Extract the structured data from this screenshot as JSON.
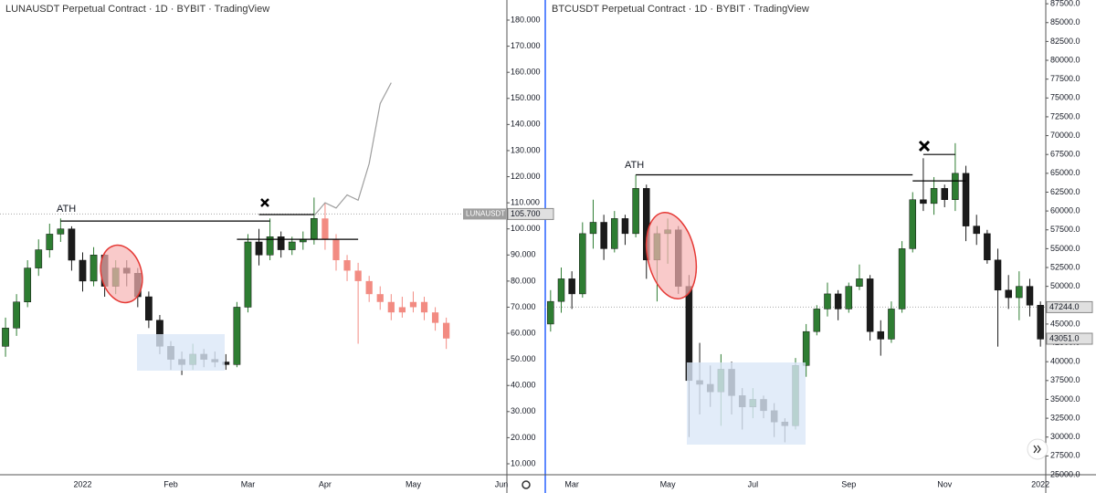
{
  "chart_data": [
    {
      "type": "candlestick",
      "title": "LUNAUSDT Perpetual Contract · 1D · BYBIT · TradingView",
      "categories": [
        null,
        null,
        null,
        null,
        null,
        null,
        null,
        "2022",
        null,
        null,
        null,
        null,
        null,
        null,
        null,
        "Feb",
        null,
        null,
        null,
        null,
        null,
        null,
        "Mar",
        null,
        null,
        null,
        null,
        null,
        null,
        "Apr",
        null,
        null,
        null,
        null,
        null,
        null,
        null,
        "May",
        null,
        null,
        null,
        null,
        null,
        null,
        null,
        "Jun"
      ],
      "ylim": [
        5.8,
        187.7
      ],
      "yticks": [
        {
          "value": 10,
          "label": "10.000"
        },
        {
          "value": 20,
          "label": "20.000"
        },
        {
          "value": 30,
          "label": "30.000"
        },
        {
          "value": 40,
          "label": "40.000"
        },
        {
          "value": 50,
          "label": "50.000"
        },
        {
          "value": 60,
          "label": "60.000"
        },
        {
          "value": 70,
          "label": "70.000"
        },
        {
          "value": 80,
          "label": "80.000"
        },
        {
          "value": 90,
          "label": "90.000"
        },
        {
          "value": 100,
          "label": "100.000"
        },
        {
          "value": 110,
          "label": "110.000"
        },
        {
          "value": 120,
          "label": "120.000"
        },
        {
          "value": 130,
          "label": "130.000"
        },
        {
          "value": 140,
          "label": "140.000"
        },
        {
          "value": 150,
          "label": "150.000"
        },
        {
          "value": 160,
          "label": "160.000"
        },
        {
          "value": 170,
          "label": "170.000"
        },
        {
          "value": 180,
          "label": "180.000"
        }
      ],
      "series": [
        {
          "color_up": "#2e7d32",
          "color_down": "#1b1b1b",
          "open": [
            55,
            62,
            72,
            85,
            92,
            98,
            100,
            88,
            80,
            90,
            78,
            85,
            83,
            74,
            65,
            55,
            50,
            48,
            52,
            50,
            49,
            48,
            70,
            95,
            90,
            97,
            92,
            95,
            96,
            null,
            null,
            null,
            null,
            null,
            null,
            null,
            null,
            null,
            null,
            null,
            null,
            null,
            null,
            null,
            null,
            null
          ],
          "high": [
            66,
            75,
            88,
            96,
            102,
            104,
            101,
            91,
            93,
            91,
            88,
            88,
            85,
            76,
            67,
            57,
            53,
            56,
            54,
            53,
            52,
            72,
            98,
            100,
            104,
            99,
            97,
            99,
            112,
            null,
            null,
            null,
            null,
            null,
            null,
            null,
            null,
            null,
            null,
            null,
            null,
            null,
            null,
            null,
            null,
            null
          ],
          "low": [
            51,
            59,
            70,
            82,
            89,
            95,
            84,
            76,
            78,
            74,
            75,
            78,
            70,
            62,
            52,
            46,
            44,
            46,
            47,
            47,
            46,
            47,
            68,
            86,
            88,
            89,
            90,
            92,
            94,
            null,
            null,
            null,
            null,
            null,
            null,
            null,
            null,
            null,
            null,
            null,
            null,
            null,
            null,
            null,
            null,
            null
          ],
          "close": [
            62,
            72,
            85,
            92,
            98,
            100,
            88,
            80,
            90,
            78,
            85,
            83,
            74,
            65,
            55,
            50,
            48,
            52,
            50,
            49,
            48,
            70,
            95,
            90,
            97,
            92,
            95,
            96,
            104,
            null,
            null,
            null,
            null,
            null,
            null,
            null,
            null,
            null,
            null,
            null,
            null,
            null,
            null,
            null,
            null,
            null
          ]
        },
        {
          "color": "#f28b82",
          "open": [
            null,
            null,
            null,
            null,
            null,
            null,
            null,
            null,
            null,
            null,
            null,
            null,
            null,
            null,
            null,
            null,
            null,
            null,
            null,
            null,
            null,
            null,
            null,
            null,
            null,
            null,
            null,
            null,
            null,
            104,
            96,
            88,
            84,
            80,
            75,
            72,
            68,
            70,
            72,
            68,
            64,
            null,
            null,
            null,
            null,
            null
          ],
          "high": [
            null,
            null,
            null,
            null,
            null,
            null,
            null,
            null,
            null,
            null,
            null,
            null,
            null,
            null,
            null,
            null,
            null,
            null,
            null,
            null,
            null,
            null,
            null,
            null,
            null,
            null,
            null,
            null,
            null,
            110,
            98,
            90,
            87,
            82,
            78,
            75,
            74,
            76,
            74,
            70,
            66,
            null,
            null,
            null,
            null,
            null
          ],
          "low": [
            null,
            null,
            null,
            null,
            null,
            null,
            null,
            null,
            null,
            null,
            null,
            null,
            null,
            null,
            null,
            null,
            null,
            null,
            null,
            null,
            null,
            null,
            null,
            null,
            null,
            null,
            null,
            null,
            null,
            92,
            84,
            80,
            56,
            72,
            69,
            65,
            66,
            68,
            65,
            61,
            54,
            null,
            null,
            null,
            null,
            null
          ],
          "close": [
            null,
            null,
            null,
            null,
            null,
            null,
            null,
            null,
            null,
            null,
            null,
            null,
            null,
            null,
            null,
            null,
            null,
            null,
            null,
            null,
            null,
            null,
            null,
            null,
            null,
            null,
            null,
            null,
            null,
            96,
            88,
            84,
            80,
            75,
            72,
            68,
            70,
            72,
            68,
            64,
            58,
            null,
            null,
            null,
            null,
            null
          ]
        }
      ],
      "projection": {
        "color": "#9e9e9e",
        "values": [
          null,
          null,
          null,
          null,
          null,
          null,
          null,
          null,
          null,
          null,
          null,
          null,
          null,
          null,
          null,
          null,
          null,
          null,
          null,
          null,
          null,
          null,
          null,
          null,
          null,
          null,
          null,
          null,
          105,
          110,
          108,
          113,
          111,
          125,
          148,
          156,
          null,
          null,
          null,
          null,
          null,
          null,
          null,
          null,
          null,
          null
        ]
      },
      "levels": [
        {
          "value": 103,
          "from": 5,
          "to": 24
        },
        {
          "value": 105.5,
          "from": 23,
          "to": 28
        },
        {
          "value": 96,
          "from": 21,
          "to": 32
        }
      ],
      "price_labels": [
        {
          "name": "LUNAUSDT",
          "value": 105.7,
          "label": "105.700"
        }
      ],
      "annotations": [
        {
          "text": "ATH"
        }
      ]
    },
    {
      "type": "candlestick",
      "title": "BTCUSDT Perpetual Contract · 1D · BYBIT · TradingView",
      "categories": [
        null,
        null,
        "Mar",
        null,
        null,
        null,
        null,
        null,
        null,
        null,
        null,
        "May",
        null,
        null,
        null,
        null,
        null,
        null,
        null,
        "Jul",
        null,
        null,
        null,
        null,
        null,
        null,
        null,
        null,
        "Sep",
        null,
        null,
        null,
        null,
        null,
        null,
        null,
        null,
        "Nov",
        null,
        null,
        null,
        null,
        null,
        null,
        null,
        null,
        "2022"
      ],
      "ylim": [
        25000,
        88000
      ],
      "yticks": [
        {
          "value": 25000,
          "label": "25000.0"
        },
        {
          "value": 27500,
          "label": "27500.0"
        },
        {
          "value": 30000,
          "label": "30000.0"
        },
        {
          "value": 32500,
          "label": "32500.0"
        },
        {
          "value": 35000,
          "label": "35000.0"
        },
        {
          "value": 37500,
          "label": "37500.0"
        },
        {
          "value": 40000,
          "label": "40000.0"
        },
        {
          "value": 42500,
          "label": "42500.0"
        },
        {
          "value": 45000,
          "label": "45000.0"
        },
        {
          "value": 47500,
          "label": "47500.0"
        },
        {
          "value": 50000,
          "label": "50000.0"
        },
        {
          "value": 52500,
          "label": "52500.0"
        },
        {
          "value": 55000,
          "label": "55000.0"
        },
        {
          "value": 57500,
          "label": "57500.0"
        },
        {
          "value": 60000,
          "label": "60000.0"
        },
        {
          "value": 62500,
          "label": "62500.0"
        },
        {
          "value": 65000,
          "label": "65000.0"
        },
        {
          "value": 67500,
          "label": "67500.0"
        },
        {
          "value": 70000,
          "label": "70000.0"
        },
        {
          "value": 72500,
          "label": "72500.0"
        },
        {
          "value": 75000,
          "label": "75000.0"
        },
        {
          "value": 77500,
          "label": "77500.0"
        },
        {
          "value": 80000,
          "label": "80000.0"
        },
        {
          "value": 82500,
          "label": "82500.0"
        },
        {
          "value": 85000,
          "label": "85000.0"
        },
        {
          "value": 87500,
          "label": "87500.0"
        }
      ],
      "series": [
        {
          "color_up": "#2e7d32",
          "color_down": "#1b1b1b",
          "open": [
            45000,
            48000,
            51000,
            49000,
            57000,
            58500,
            55000,
            59000,
            57000,
            63000,
            53500,
            57000,
            57500,
            50000,
            37500,
            37000,
            36000,
            39000,
            35500,
            34000,
            35000,
            33500,
            32000,
            31500,
            39500,
            44000,
            47000,
            49000,
            47000,
            50000,
            51000,
            44000,
            43000,
            47000,
            55000,
            61500,
            61000,
            63000,
            61500,
            65000,
            58000,
            57000,
            53500,
            49500,
            48500,
            50000,
            47500
          ],
          "high": [
            49500,
            52500,
            52000,
            58500,
            61500,
            59500,
            60000,
            59500,
            64800,
            63500,
            58000,
            59000,
            58000,
            51500,
            42500,
            39500,
            41000,
            40000,
            36500,
            36500,
            35500,
            34500,
            32500,
            40500,
            45000,
            47500,
            50500,
            49500,
            50500,
            52900,
            51500,
            45500,
            48000,
            56000,
            62500,
            67000,
            64500,
            63500,
            69000,
            66000,
            59500,
            57500,
            55000,
            51500,
            52000,
            51000,
            48000
          ],
          "low": [
            44000,
            46500,
            47000,
            48500,
            55000,
            53500,
            54500,
            55500,
            56500,
            51000,
            48000,
            53000,
            49000,
            30000,
            33000,
            34000,
            31500,
            33000,
            31000,
            32500,
            32500,
            30000,
            29300,
            31000,
            38000,
            43500,
            46000,
            45500,
            46500,
            49500,
            42800,
            40800,
            42500,
            46500,
            54500,
            60000,
            59500,
            60500,
            60000,
            56000,
            55500,
            53000,
            42000,
            47000,
            45500,
            46000,
            42000
          ],
          "close": [
            48000,
            51000,
            49000,
            57000,
            58500,
            55000,
            59000,
            57000,
            63000,
            53500,
            57000,
            57500,
            50000,
            37500,
            37000,
            36000,
            39000,
            35500,
            34000,
            35000,
            33500,
            32000,
            31500,
            39500,
            44000,
            47000,
            49000,
            47000,
            50000,
            51000,
            44000,
            43000,
            47000,
            55000,
            61500,
            61000,
            63000,
            61500,
            65000,
            58000,
            57000,
            53500,
            49500,
            48500,
            50000,
            47500,
            43000
          ]
        }
      ],
      "levels": [
        {
          "value": 64800,
          "from": 8,
          "to": 34
        },
        {
          "value": 67500,
          "from": 35,
          "to": 38
        },
        {
          "value": 64000,
          "from": 34,
          "to": 39
        }
      ],
      "price_labels": [
        {
          "value": 47244,
          "label": "47244.0"
        },
        {
          "value": 43051,
          "label": "43051.0"
        }
      ],
      "annotations": [
        {
          "text": "ATH"
        }
      ]
    }
  ]
}
